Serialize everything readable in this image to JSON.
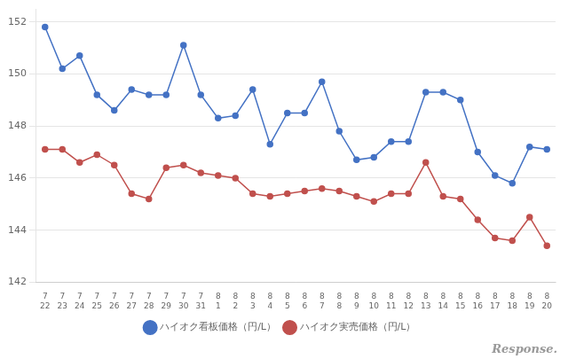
{
  "chart_data": {
    "type": "line",
    "categories": [
      [
        "7",
        "22"
      ],
      [
        "7",
        "23"
      ],
      [
        "7",
        "24"
      ],
      [
        "7",
        "25"
      ],
      [
        "7",
        "26"
      ],
      [
        "7",
        "27"
      ],
      [
        "7",
        "28"
      ],
      [
        "7",
        "29"
      ],
      [
        "7",
        "30"
      ],
      [
        "7",
        "31"
      ],
      [
        "8",
        "1"
      ],
      [
        "8",
        "2"
      ],
      [
        "8",
        "3"
      ],
      [
        "8",
        "4"
      ],
      [
        "8",
        "5"
      ],
      [
        "8",
        "6"
      ],
      [
        "8",
        "7"
      ],
      [
        "8",
        "8"
      ],
      [
        "8",
        "9"
      ],
      [
        "8",
        "10"
      ],
      [
        "8",
        "11"
      ],
      [
        "8",
        "12"
      ],
      [
        "8",
        "13"
      ],
      [
        "8",
        "14"
      ],
      [
        "8",
        "15"
      ],
      [
        "8",
        "16"
      ],
      [
        "8",
        "17"
      ],
      [
        "8",
        "18"
      ],
      [
        "8",
        "19"
      ],
      [
        "8",
        "20"
      ]
    ],
    "series": [
      {
        "name": "ハイオク看板価格（円/L）",
        "color": "#4472C4",
        "marker": "circle",
        "line_style": "solid",
        "values": [
          151.8,
          150.2,
          150.7,
          149.2,
          148.6,
          149.4,
          149.2,
          149.2,
          151.1,
          149.2,
          148.3,
          148.4,
          149.4,
          147.3,
          148.5,
          148.5,
          149.7,
          147.8,
          146.7,
          146.8,
          147.4,
          147.4,
          149.3,
          149.3,
          149.0,
          147.0,
          146.1,
          145.8,
          147.2,
          147.1
        ]
      },
      {
        "name": "ハイオク実売価格（円/L）",
        "color": "#C0504D",
        "marker": "circle",
        "line_style": "solid",
        "values": [
          147.1,
          147.1,
          146.6,
          146.9,
          146.5,
          145.4,
          145.2,
          146.4,
          146.5,
          146.2,
          146.1,
          146.0,
          145.4,
          145.3,
          145.4,
          145.5,
          145.6,
          145.5,
          145.3,
          145.1,
          145.4,
          145.4,
          146.6,
          145.3,
          145.2,
          144.4,
          143.7,
          143.6,
          144.5,
          143.4
        ]
      }
    ],
    "ylim": [
      142,
      152.5
    ],
    "yticks": [
      142,
      144,
      146,
      148,
      150,
      152
    ],
    "grid": "y",
    "legend": "bottom",
    "annotations": [
      "Response."
    ]
  }
}
